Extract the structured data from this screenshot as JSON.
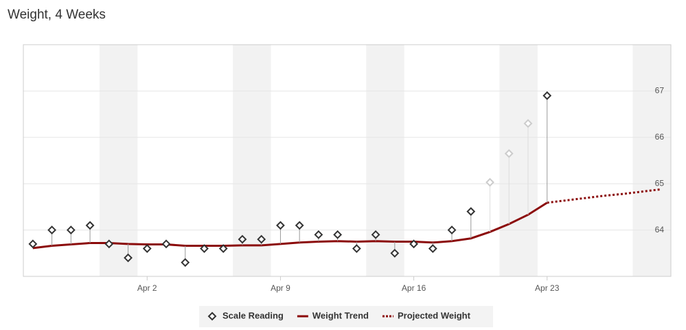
{
  "chart_data": {
    "type": "line",
    "title": "Weight, 4 Weeks",
    "categories": [
      null,
      null,
      null,
      null,
      null,
      null,
      "Apr 2",
      null,
      null,
      null,
      null,
      null,
      null,
      "Apr 9",
      null,
      null,
      null,
      null,
      null,
      null,
      "Apr 16",
      null,
      null,
      null,
      null,
      null,
      null,
      "Apr 23",
      null,
      null,
      null,
      null,
      null,
      null
    ],
    "series": [
      {
        "name": "Scale Reading",
        "mark": "diamond",
        "color": "#333333",
        "point_colors": [
          "#333333",
          "#333333",
          "#333333",
          "#333333",
          "#333333",
          "#333333",
          "#333333",
          "#333333",
          "#333333",
          "#333333",
          "#333333",
          "#333333",
          "#333333",
          "#333333",
          "#333333",
          "#333333",
          "#333333",
          "#333333",
          "#333333",
          "#333333",
          "#333333",
          "#333333",
          "#333333",
          "#333333",
          "#cccccc",
          "#cccccc",
          "#cccccc",
          "#333333",
          null,
          null,
          null,
          null,
          null,
          null
        ],
        "values": [
          63.7,
          64.0,
          64.0,
          64.1,
          63.7,
          63.4,
          63.6,
          63.7,
          63.3,
          63.6,
          63.6,
          63.8,
          63.8,
          64.1,
          64.1,
          63.9,
          63.9,
          63.6,
          63.9,
          63.5,
          63.7,
          63.6,
          64.0,
          64.4,
          65.03,
          65.65,
          66.3,
          66.9,
          null,
          null,
          null,
          null,
          null,
          null
        ]
      },
      {
        "name": "Weight Trend",
        "mark": "line",
        "color": "#8b0a0a",
        "values": [
          63.61,
          63.66,
          63.69,
          63.72,
          63.72,
          63.7,
          63.69,
          63.69,
          63.66,
          63.66,
          63.66,
          63.67,
          63.67,
          63.7,
          63.73,
          63.75,
          63.76,
          63.75,
          63.76,
          63.75,
          63.75,
          63.73,
          63.76,
          63.82,
          63.96,
          64.13,
          64.33,
          64.59,
          null,
          null,
          null,
          null,
          null,
          null
        ]
      },
      {
        "name": "Projected Weight",
        "mark": "dotted",
        "color": "#8b0a0a",
        "values": [
          null,
          null,
          null,
          null,
          null,
          null,
          null,
          null,
          null,
          null,
          null,
          null,
          null,
          null,
          null,
          null,
          null,
          null,
          null,
          null,
          null,
          null,
          null,
          null,
          null,
          null,
          null,
          64.59,
          64.64,
          64.69,
          64.74,
          64.78,
          64.83,
          64.88
        ]
      }
    ],
    "ylim": [
      63,
      68
    ],
    "yticks": [
      64,
      65,
      66,
      67
    ],
    "grid": true
  }
}
